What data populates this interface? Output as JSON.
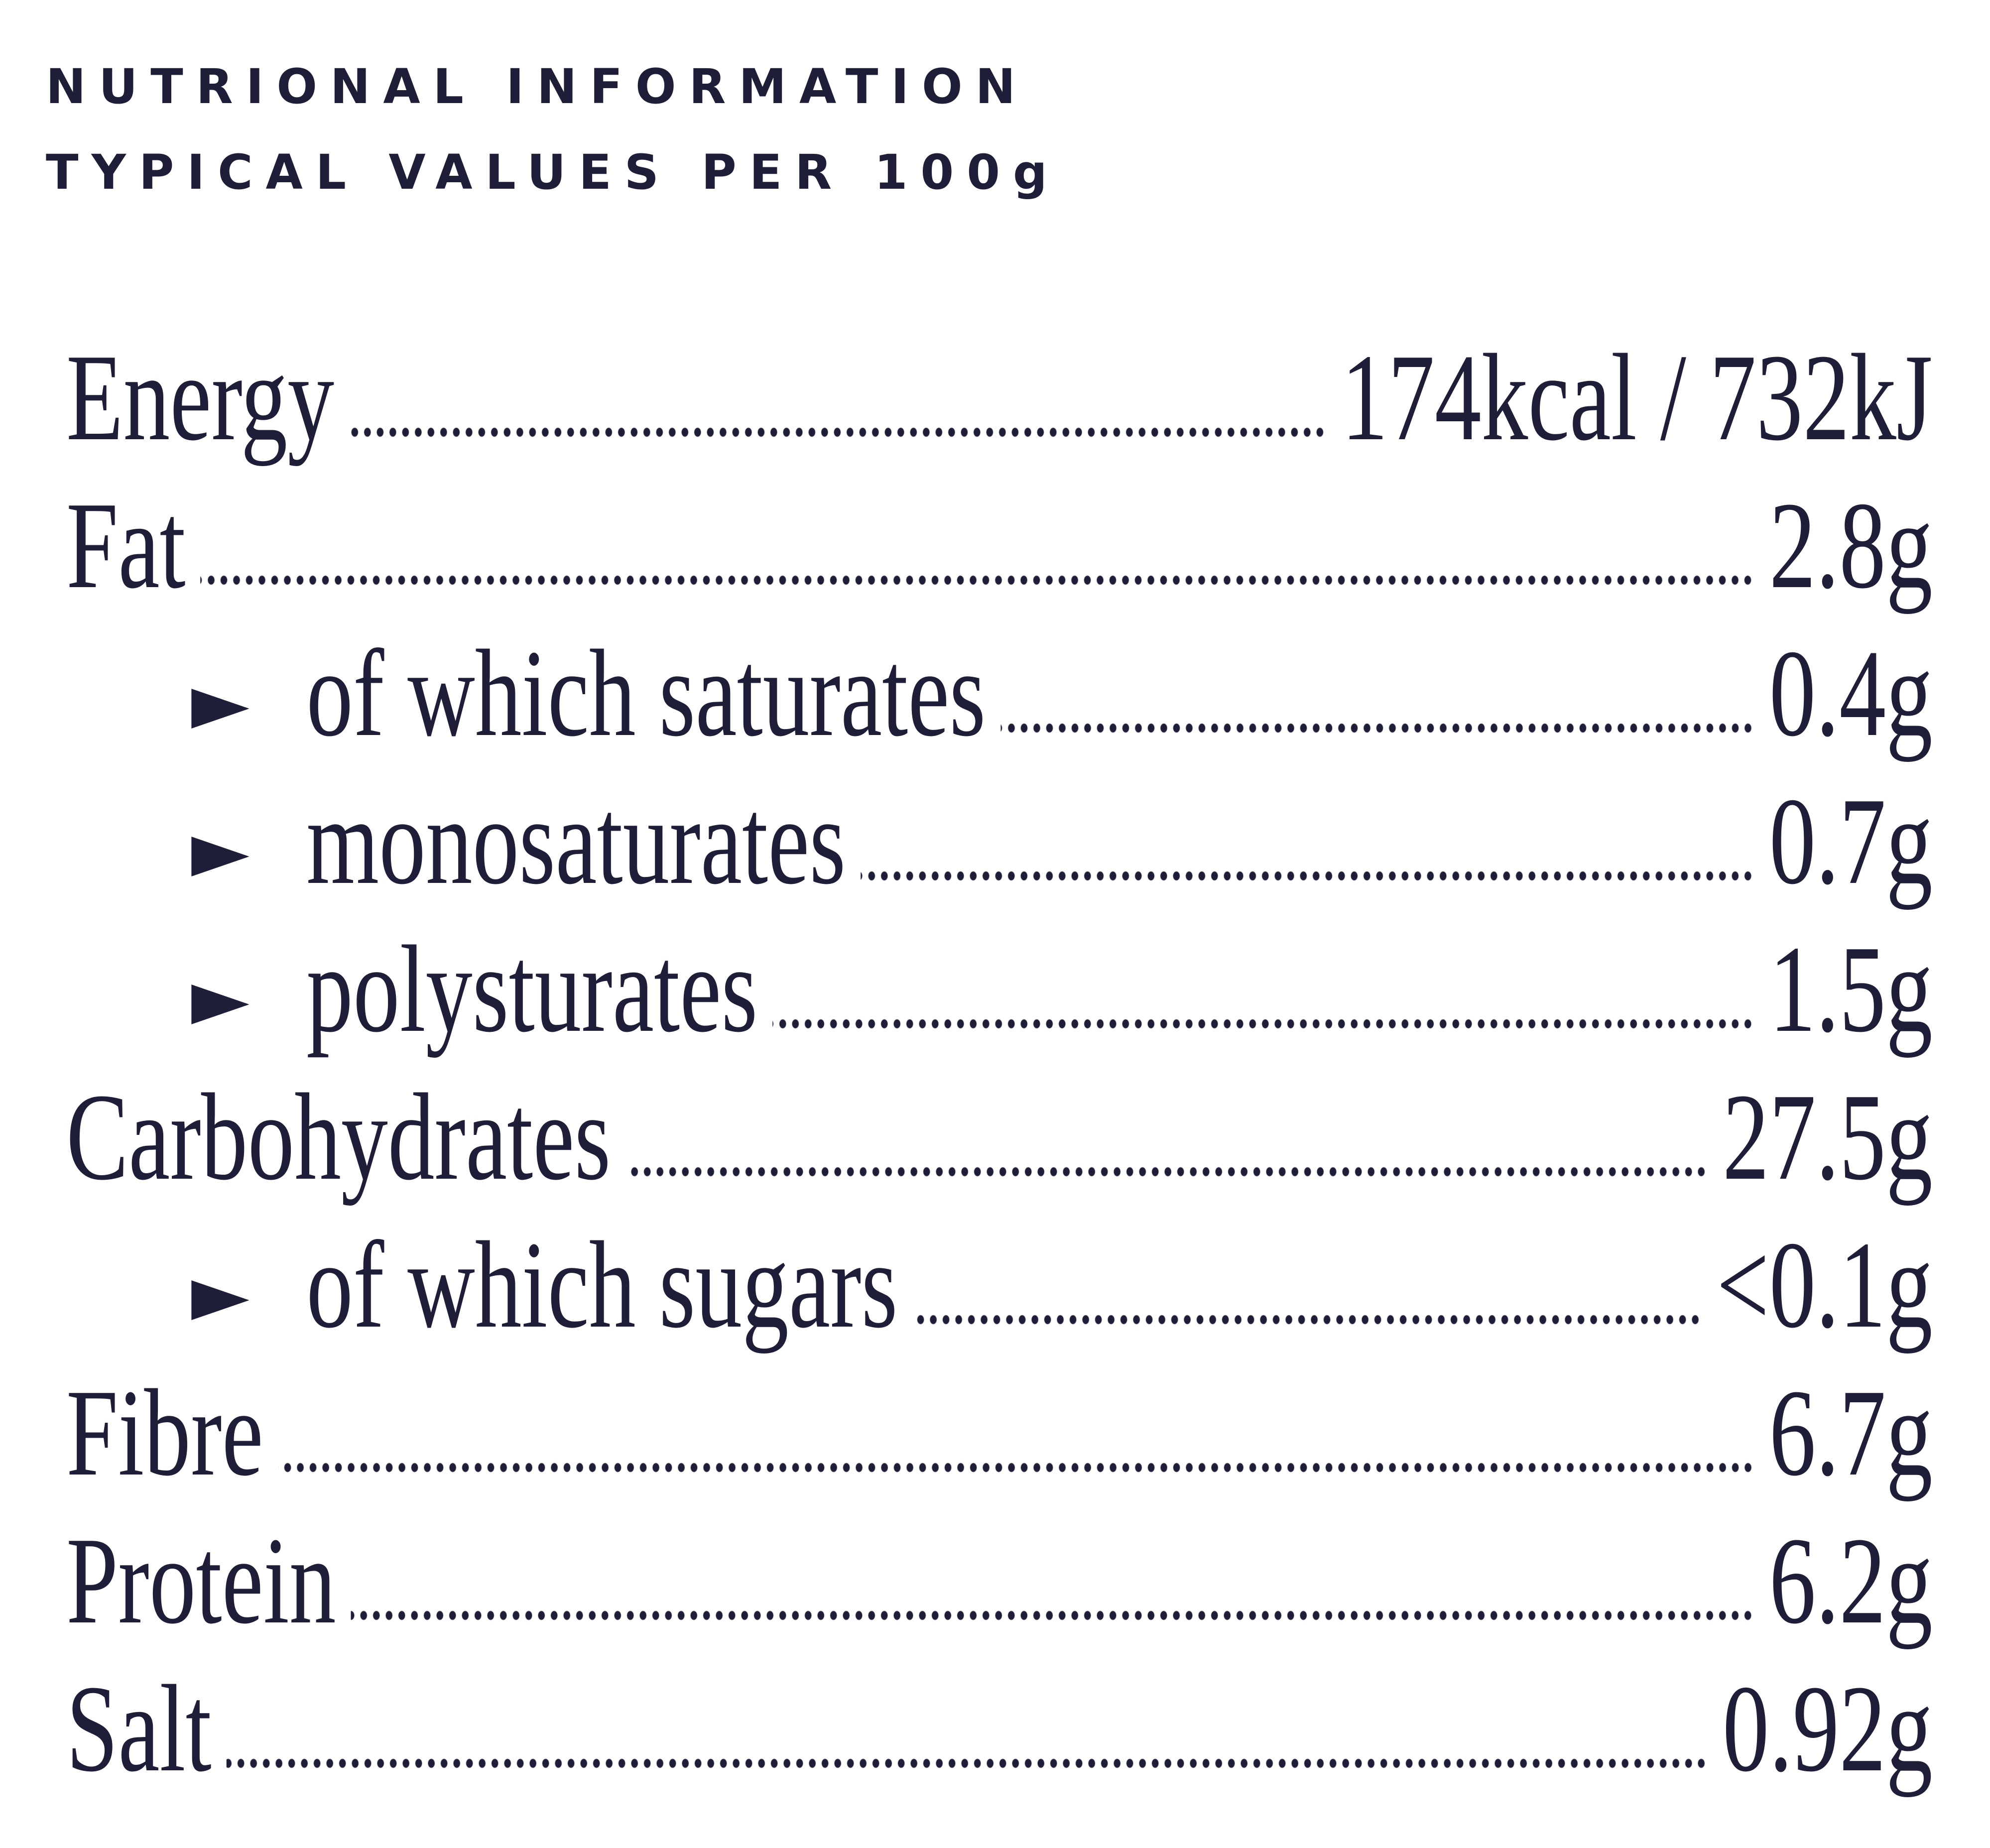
{
  "header": {
    "title": [
      "NUTRIONAL INFORMATION",
      "TYPICAL VALUES PER 100g"
    ]
  },
  "nutrients": [
    {
      "label": "Energy",
      "value": "174kcal / 732kJ"
    },
    {
      "label": "Fat",
      "value": "2.8g",
      "sub": [
        {
          "label": "of which saturates",
          "value": "0.4g"
        },
        {
          "label": "monosaturates",
          "value": "0.7g"
        },
        {
          "label": "polysturates",
          "value": "1.5g"
        }
      ]
    },
    {
      "label": "Carbohydrates",
      "value": "27.5g",
      "sub": [
        {
          "label": "of which sugars",
          "value": "<0.1g"
        }
      ]
    },
    {
      "label": "Fibre",
      "value": "6.7g"
    },
    {
      "label": "Protein",
      "value": "6.2g"
    },
    {
      "label": "Salt",
      "value": "0.92g"
    }
  ]
}
